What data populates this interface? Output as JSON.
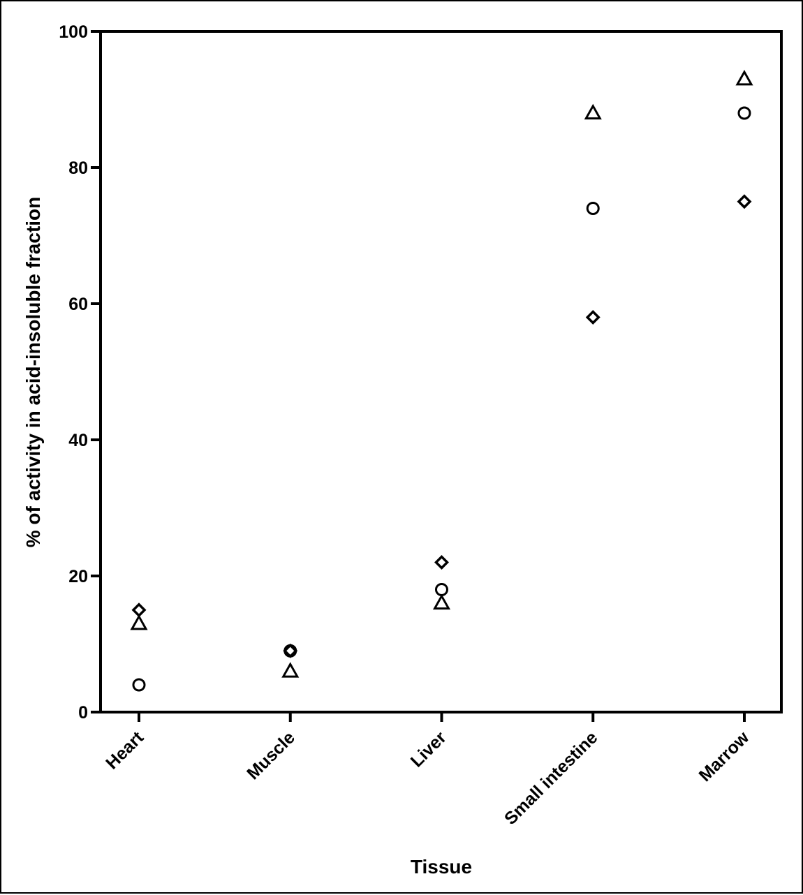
{
  "chart_data": {
    "type": "scatter",
    "title": "",
    "xlabel": "Tissue",
    "ylabel": "% of activity in acid-insoluble fraction",
    "categories": [
      "Heart",
      "Muscle",
      "Liver",
      "Small intestine",
      "Marrow"
    ],
    "ylim": [
      0,
      100
    ],
    "yticks": [
      0,
      20,
      40,
      60,
      80,
      100
    ],
    "grid": false,
    "legend": "none",
    "series": [
      {
        "marker": "circle",
        "values": [
          4,
          9,
          18,
          74,
          88
        ]
      },
      {
        "marker": "triangle",
        "values": [
          13,
          6,
          16,
          88,
          93
        ]
      },
      {
        "marker": "diamond",
        "values": [
          15,
          9,
          22,
          58,
          75
        ]
      }
    ],
    "colors": {
      "marker_stroke": "#000000",
      "axis": "#000000"
    }
  }
}
